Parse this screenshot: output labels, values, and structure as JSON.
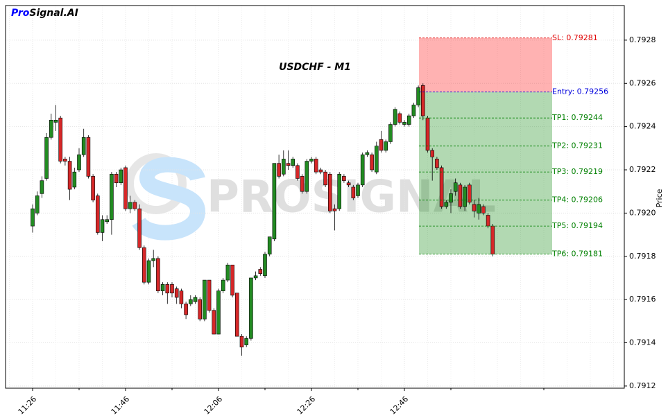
{
  "chart_data": {
    "type": "candlestick",
    "brand": {
      "first": "Pro",
      "rest": "Signal.AI"
    },
    "title": "USDCHF - M1",
    "watermark": "PROSIGNAL",
    "ylabel": "Price",
    "up_color": "#228b22",
    "down_color": "#d62728",
    "x": [
      "11:26",
      "11:27",
      "11:28",
      "11:29",
      "11:30",
      "11:31",
      "11:32",
      "11:33",
      "11:34",
      "11:35",
      "11:36",
      "11:37",
      "11:38",
      "11:39",
      "11:40",
      "11:41",
      "11:42",
      "11:43",
      "11:44",
      "11:45",
      "11:46",
      "11:47",
      "11:48",
      "11:49",
      "11:50",
      "11:51",
      "11:52",
      "11:53",
      "11:54",
      "11:55",
      "11:56",
      "11:57",
      "11:58",
      "11:59",
      "12:00",
      "12:01",
      "12:02",
      "12:03",
      "12:04",
      "12:05",
      "12:06",
      "12:07",
      "12:08",
      "12:09",
      "12:10",
      "12:11",
      "12:12",
      "12:13",
      "12:14",
      "12:15",
      "12:16",
      "12:17",
      "12:18",
      "12:19",
      "12:20",
      "12:21",
      "12:22",
      "12:23",
      "12:24",
      "12:25",
      "12:26",
      "12:27",
      "12:28",
      "12:29",
      "12:30",
      "12:31",
      "12:32",
      "12:33",
      "12:34",
      "12:35",
      "12:36",
      "12:37",
      "12:38",
      "12:39",
      "12:40",
      "12:41",
      "12:42",
      "12:43",
      "12:44",
      "12:45",
      "12:46",
      "12:47",
      "12:48",
      "12:49",
      "12:50",
      "12:51",
      "12:52",
      "12:53",
      "12:54",
      "12:55",
      "12:56",
      "12:57",
      "12:58",
      "12:59",
      "13:00",
      "13:01",
      "13:02",
      "13:03",
      "13:04",
      "13:05"
    ],
    "open": [
      0.79194,
      0.792,
      0.79209,
      0.79216,
      0.79235,
      0.79242,
      0.79244,
      0.79225,
      0.79224,
      0.79212,
      0.7922,
      0.79227,
      0.79235,
      0.79217,
      0.79208,
      0.79191,
      0.79196,
      0.79197,
      0.79218,
      0.79214,
      0.79221,
      0.79202,
      0.79205,
      0.79202,
      0.79184,
      0.79168,
      0.79178,
      0.79179,
      0.79164,
      0.79167,
      0.79167,
      0.79165,
      0.79164,
      0.79158,
      0.79158,
      0.79159,
      0.7916,
      0.79151,
      0.79169,
      0.79155,
      0.79144,
      0.79164,
      0.79169,
      0.79176,
      0.79163,
      0.79143,
      0.79139,
      0.79142,
      0.7917,
      0.79174,
      0.79171,
      0.79181,
      0.79188,
      0.79223,
      0.79218,
      0.79223,
      0.79222,
      0.79222,
      0.79217,
      0.7921,
      0.79224,
      0.79225,
      0.7922,
      0.79219,
      0.79218,
      0.79202,
      0.79202,
      0.79217,
      0.79214,
      0.79212,
      0.79208,
      0.79213,
      0.79227,
      0.79227,
      0.79219,
      0.79234,
      0.79229,
      0.79233,
      0.79241,
      0.79246,
      0.79241,
      0.79241,
      0.79245,
      0.7925,
      0.79259,
      0.79244,
      0.79229,
      0.79225,
      0.79221,
      0.79203,
      0.79205,
      0.7921,
      0.79213,
      0.79203,
      0.79213,
      0.79204,
      0.792,
      0.79203,
      0.79199,
      0.79194
    ],
    "high": [
      0.79204,
      0.7921,
      0.79217,
      0.79237,
      0.79246,
      0.7925,
      0.79245,
      0.79226,
      0.79226,
      0.79221,
      0.7923,
      0.79239,
      0.79236,
      0.79218,
      0.79209,
      0.79199,
      0.79199,
      0.79219,
      0.79219,
      0.79221,
      0.79222,
      0.79208,
      0.79206,
      0.79204,
      0.79185,
      0.79179,
      0.79183,
      0.7918,
      0.79168,
      0.79168,
      0.79168,
      0.79166,
      0.79165,
      0.79159,
      0.79162,
      0.79162,
      0.79161,
      0.79169,
      0.79169,
      0.79156,
      0.79165,
      0.7917,
      0.79177,
      0.79176,
      0.79163,
      0.79144,
      0.79143,
      0.7917,
      0.79173,
      0.79175,
      0.79182,
      0.79189,
      0.79223,
      0.79227,
      0.79229,
      0.79229,
      0.79226,
      0.79223,
      0.79218,
      0.79225,
      0.79226,
      0.79226,
      0.79221,
      0.7922,
      0.79219,
      0.79204,
      0.79219,
      0.79218,
      0.79215,
      0.79213,
      0.79214,
      0.79228,
      0.79229,
      0.79228,
      0.79233,
      0.79238,
      0.79234,
      0.79242,
      0.79249,
      0.79247,
      0.79243,
      0.79246,
      0.79251,
      0.79259,
      0.7926,
      0.79245,
      0.7923,
      0.79226,
      0.79222,
      0.79206,
      0.79211,
      0.79216,
      0.79214,
      0.79213,
      0.79214,
      0.79206,
      0.79207,
      0.79204,
      0.792,
      0.79195
    ],
    "low": [
      0.79191,
      0.79199,
      0.79207,
      0.79215,
      0.79234,
      0.79238,
      0.79223,
      0.79222,
      0.79206,
      0.79211,
      0.79219,
      0.79226,
      0.79216,
      0.79205,
      0.7919,
      0.79187,
      0.79195,
      0.7919,
      0.79212,
      0.79213,
      0.79201,
      0.792,
      0.79201,
      0.79183,
      0.79167,
      0.79167,
      0.79175,
      0.79163,
      0.79162,
      0.79158,
      0.79161,
      0.79158,
      0.79156,
      0.79151,
      0.79157,
      0.79158,
      0.7915,
      0.7915,
      0.79154,
      0.79144,
      0.79144,
      0.79163,
      0.79168,
      0.79161,
      0.79143,
      0.79134,
      0.79138,
      0.79141,
      0.79169,
      0.79171,
      0.7917,
      0.7918,
      0.79187,
      0.79216,
      0.79217,
      0.7922,
      0.79221,
      0.79215,
      0.79209,
      0.79209,
      0.79223,
      0.79218,
      0.79218,
      0.79212,
      0.792,
      0.79192,
      0.79201,
      0.79214,
      0.79212,
      0.79206,
      0.79207,
      0.79212,
      0.79226,
      0.79219,
      0.79218,
      0.79228,
      0.79228,
      0.79232,
      0.7924,
      0.79241,
      0.7924,
      0.7924,
      0.79244,
      0.79249,
      0.79243,
      0.79228,
      0.79215,
      0.7922,
      0.79202,
      0.79202,
      0.792,
      0.79208,
      0.79202,
      0.79201,
      0.79204,
      0.79198,
      0.79197,
      0.79199,
      0.79193,
      0.7918
    ],
    "close": [
      0.79202,
      0.79208,
      0.79215,
      0.79235,
      0.79243,
      0.79243,
      0.79224,
      0.79224,
      0.79211,
      0.79219,
      0.79227,
      0.79235,
      0.79217,
      0.79206,
      0.79191,
      0.79197,
      0.79197,
      0.79218,
      0.79214,
      0.7922,
      0.79202,
      0.79205,
      0.79202,
      0.79184,
      0.79168,
      0.79178,
      0.79179,
      0.79164,
      0.79167,
      0.79163,
      0.79163,
      0.79161,
      0.79158,
      0.79153,
      0.7916,
      0.79161,
      0.79151,
      0.79169,
      0.79155,
      0.79144,
      0.79164,
      0.79169,
      0.79176,
      0.79162,
      0.79143,
      0.79138,
      0.79142,
      0.7917,
      0.79171,
      0.79172,
      0.79181,
      0.79189,
      0.79223,
      0.79217,
      0.79225,
      0.79222,
      0.79225,
      0.79216,
      0.7921,
      0.79224,
      0.79225,
      0.79219,
      0.79219,
      0.79213,
      0.79201,
      0.79201,
      0.79218,
      0.79215,
      0.79213,
      0.79207,
      0.79213,
      0.79227,
      0.79228,
      0.7922,
      0.79231,
      0.79229,
      0.79233,
      0.79241,
      0.79248,
      0.79242,
      0.79242,
      0.79245,
      0.7925,
      0.79258,
      0.79245,
      0.79229,
      0.79226,
      0.79221,
      0.79203,
      0.79205,
      0.79209,
      0.79214,
      0.79203,
      0.79212,
      0.79205,
      0.79201,
      0.79204,
      0.792,
      0.79194,
      0.79181
    ],
    "levels": [
      {
        "label": "SL: 0.79281",
        "value": 0.79281,
        "color": "#e00000"
      },
      {
        "label": "Entry: 0.79256",
        "value": 0.79256,
        "color": "#0000dd"
      },
      {
        "label": "TP1: 0.79244",
        "value": 0.79244,
        "color": "#008000"
      },
      {
        "label": "TP2: 0.79231",
        "value": 0.79231,
        "color": "#008000"
      },
      {
        "label": "TP3: 0.79219",
        "value": 0.79219,
        "color": "#008000"
      },
      {
        "label": "TP4: 0.79206",
        "value": 0.79206,
        "color": "#008000"
      },
      {
        "label": "TP5: 0.79194",
        "value": 0.79194,
        "color": "#008000"
      },
      {
        "label": "TP6: 0.79181",
        "value": 0.79181,
        "color": "#008000"
      }
    ],
    "ylim": [
      0.79119,
      0.79296
    ],
    "yticks": [
      0.7912,
      0.7914,
      0.7916,
      0.7918,
      {
        "value": 0.792,
        "label": "0.7920"
      },
      0.7922,
      0.7924,
      0.7926,
      0.7928
    ],
    "xticks": [
      "11:26",
      "11:46",
      "12:06",
      "12:26",
      "12:46"
    ],
    "grid": true
  }
}
